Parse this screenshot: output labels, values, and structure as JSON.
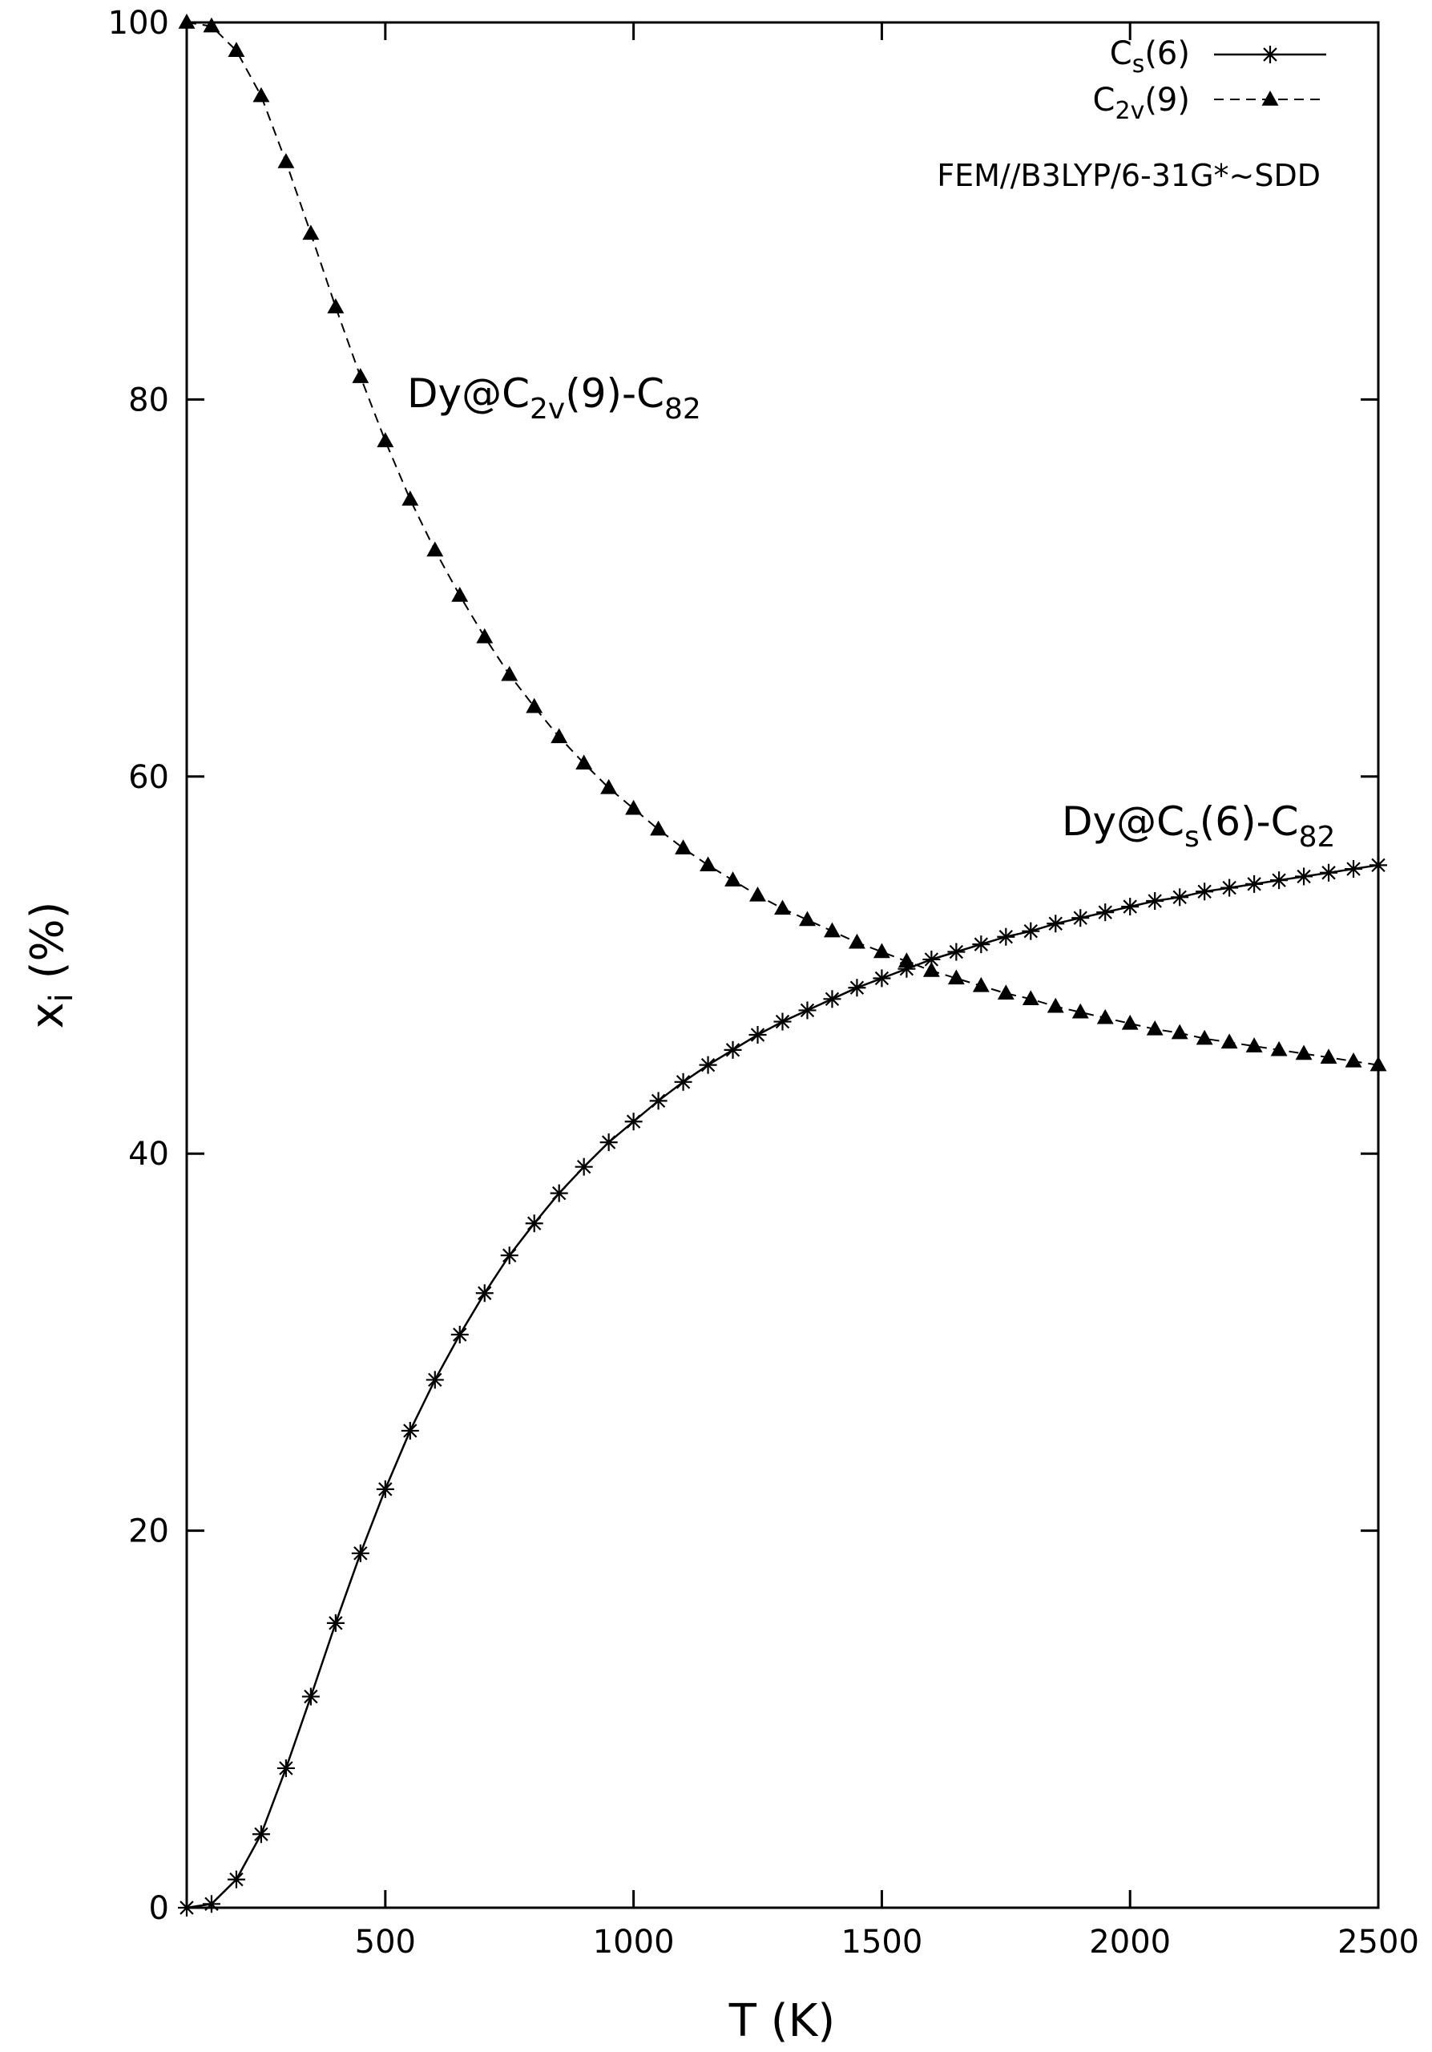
{
  "chart_data": {
    "type": "line",
    "title": "",
    "xlabel": "T (K)",
    "ylabel": "x",
    "ylabel_sub": "i",
    "ylabel_suffix": " (%)",
    "xlim": [
      100,
      2500
    ],
    "ylim": [
      0,
      100
    ],
    "xticks": [
      500,
      1000,
      1500,
      2000,
      2500
    ],
    "yticks": [
      0,
      20,
      40,
      60,
      80,
      100
    ],
    "legend_position": "top-right",
    "x": [
      100,
      150,
      200,
      250,
      300,
      350,
      400,
      450,
      500,
      550,
      600,
      650,
      700,
      750,
      800,
      850,
      900,
      950,
      1000,
      1050,
      1100,
      1150,
      1200,
      1250,
      1300,
      1350,
      1400,
      1450,
      1500,
      1550,
      1600,
      1650,
      1700,
      1750,
      1800,
      1850,
      1900,
      1950,
      2000,
      2050,
      2100,
      2150,
      2200,
      2250,
      2300,
      2350,
      2400,
      2450,
      2500
    ],
    "series": [
      {
        "name": "Cs(6)",
        "name_main": "C",
        "name_sub": "s",
        "name_suffix": "(6)",
        "marker": "star",
        "line": "solid",
        "values": [
          0,
          0.2,
          1.5,
          3.9,
          7.4,
          11.2,
          15.1,
          18.8,
          22.2,
          25.3,
          28.0,
          30.4,
          32.6,
          34.6,
          36.3,
          37.9,
          39.3,
          40.6,
          41.7,
          42.8,
          43.8,
          44.7,
          45.5,
          46.3,
          47.0,
          47.6,
          48.2,
          48.8,
          49.3,
          49.8,
          50.3,
          50.7,
          51.1,
          51.5,
          51.8,
          52.2,
          52.5,
          52.8,
          53.1,
          53.4,
          53.6,
          53.9,
          54.1,
          54.3,
          54.5,
          54.7,
          54.9,
          55.1,
          55.3
        ]
      },
      {
        "name": "C2v(9)",
        "name_main": "C",
        "name_sub": "2v",
        "name_suffix": "(9)",
        "marker": "triangle",
        "line": "dashed",
        "values": [
          100,
          99.8,
          98.5,
          96.1,
          92.6,
          88.8,
          84.9,
          81.2,
          77.8,
          74.7,
          72.0,
          69.6,
          67.4,
          65.4,
          63.7,
          62.1,
          60.7,
          59.4,
          58.3,
          57.2,
          56.2,
          55.3,
          54.5,
          53.7,
          53.0,
          52.4,
          51.8,
          51.2,
          50.7,
          50.2,
          49.7,
          49.3,
          48.9,
          48.5,
          48.2,
          47.8,
          47.5,
          47.2,
          46.9,
          46.6,
          46.4,
          46.1,
          45.9,
          45.7,
          45.5,
          45.3,
          45.1,
          44.9,
          44.7
        ]
      }
    ],
    "annotations": {
      "method": "FEM//B3LYP/6-31G*~SDD",
      "c2v_label": {
        "pre": "Dy@C",
        "sub1": "2v",
        "mid": "(9)-C",
        "sub2": "82"
      },
      "cs_label": {
        "pre": "Dy@C",
        "sub1": "s",
        "mid": "(6)-C",
        "sub2": "82"
      }
    }
  }
}
